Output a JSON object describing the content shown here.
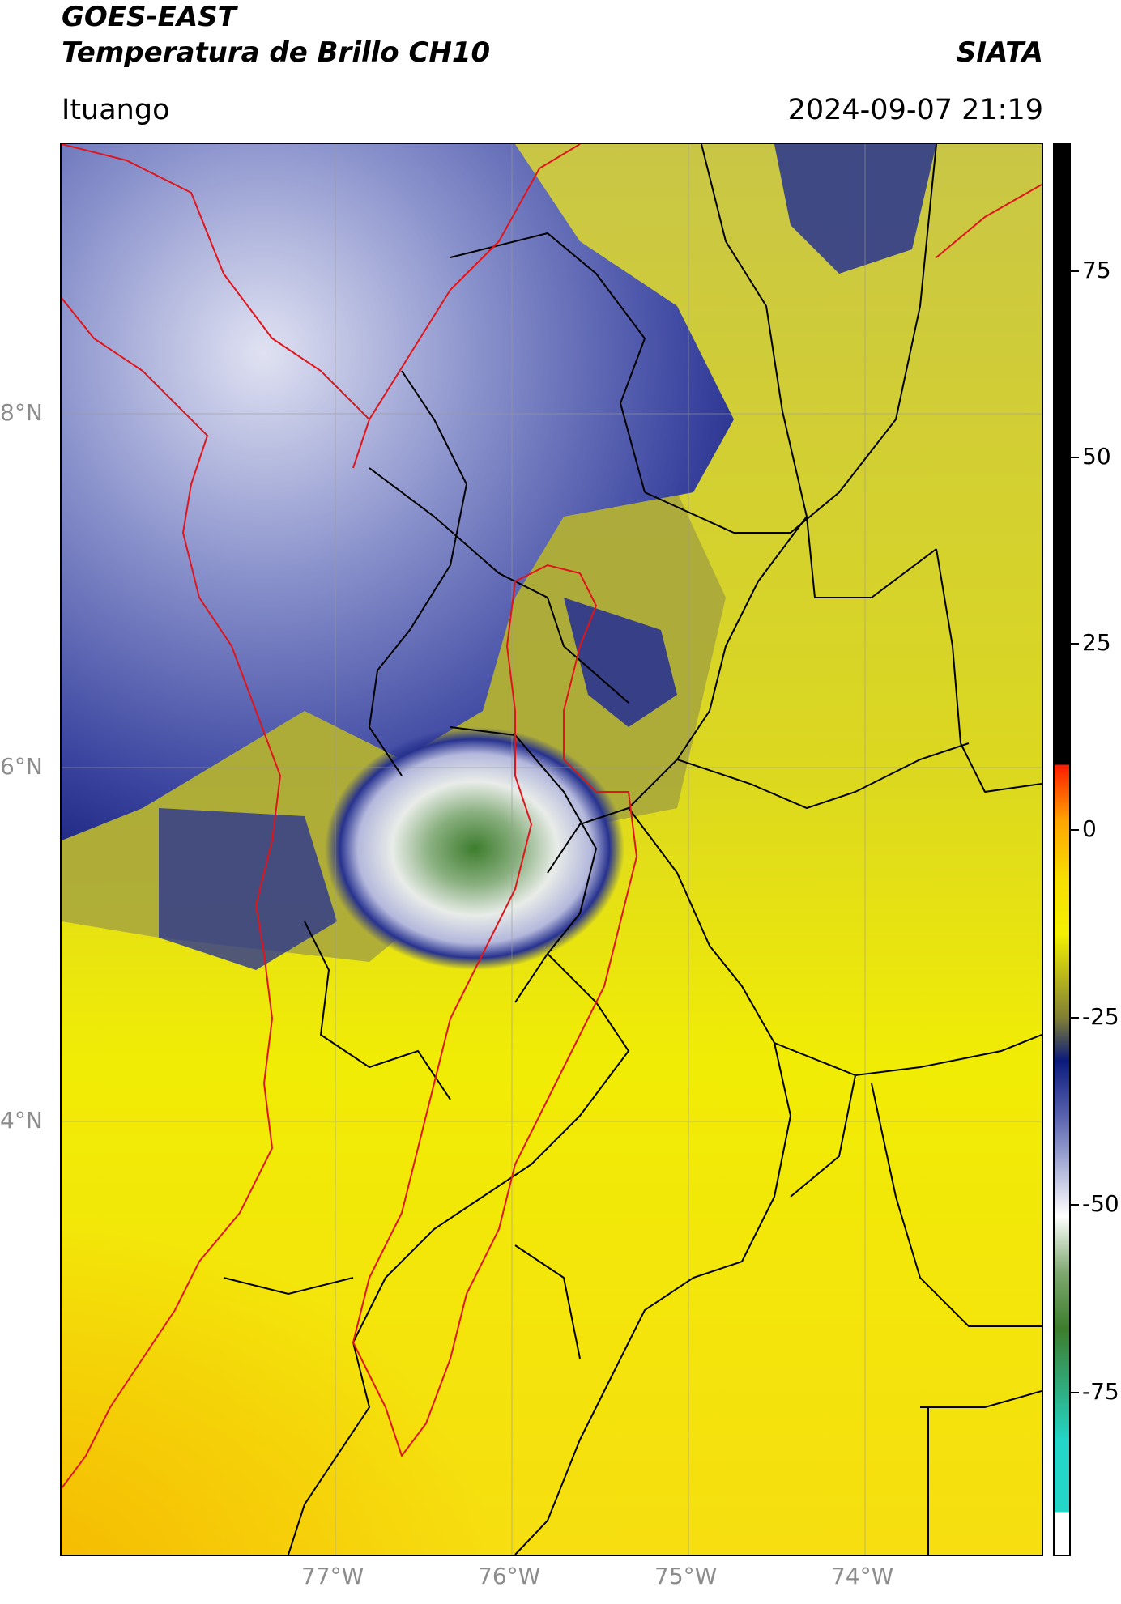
{
  "header": {
    "title": "GOES-EAST",
    "subtitle": "Temperatura de Brillo CH10",
    "organization": "SIATA",
    "location": "Ituango",
    "datetime": "2024-09-07 21:19"
  },
  "map": {
    "lat_labels": [
      "8°N",
      "6°N",
      "4°N"
    ],
    "lon_labels": [
      "77°W",
      "76°W",
      "75°W",
      "74°W"
    ],
    "border_colors": {
      "political": "#000000",
      "region": "#e0151b"
    }
  },
  "colorbar": {
    "ticks": [
      "75",
      "50",
      "25",
      "0",
      "-25",
      "-50",
      "-75"
    ],
    "palette": {
      "black": "#000000",
      "red": "#ff1a00",
      "orange": "#ffa500",
      "yellow": "#f4f000",
      "olive": "#7e7d35",
      "navy": "#0b1a7c",
      "white": "#ffffff",
      "green": "#3d7d2d",
      "cyan": "#23d6c8"
    }
  }
}
